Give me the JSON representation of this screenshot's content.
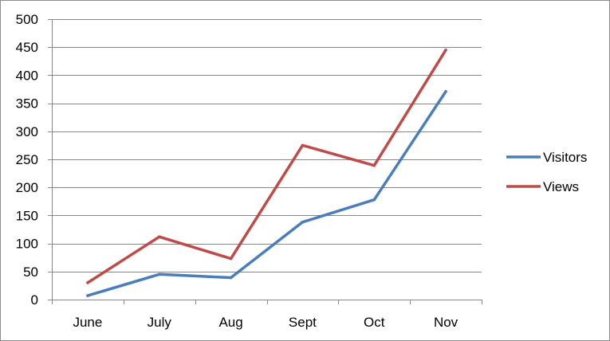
{
  "chart_data": {
    "type": "line",
    "title": "",
    "xlabel": "",
    "ylabel": "",
    "categories": [
      "June",
      "July",
      "Aug",
      "Sept",
      "Oct",
      "Nov"
    ],
    "ylim": [
      0,
      500
    ],
    "yticks": [
      "0",
      "50",
      "100",
      "150",
      "200",
      "250",
      "300",
      "350",
      "400",
      "450",
      "500"
    ],
    "grid": true,
    "legend_position": "right",
    "series": [
      {
        "name": "Visitors",
        "color": "#4a7ebb",
        "values": [
          7,
          45,
          39,
          138,
          178,
          371
        ]
      },
      {
        "name": "Views",
        "color": "#be4b48",
        "values": [
          30,
          112,
          73,
          275,
          239,
          445
        ]
      }
    ]
  }
}
